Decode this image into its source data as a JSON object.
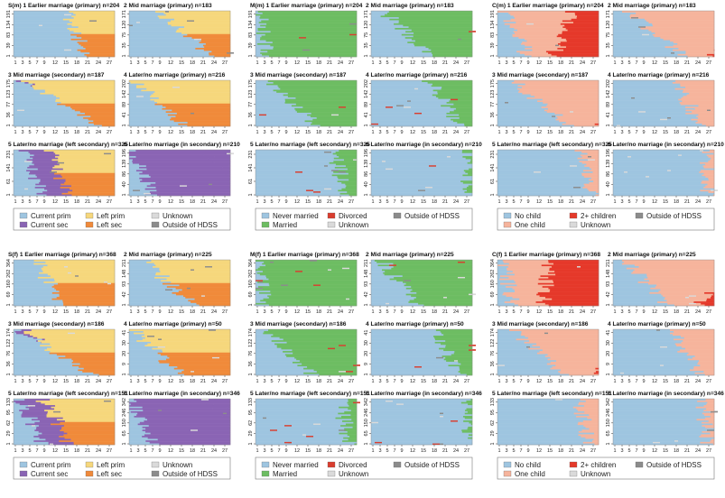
{
  "chart_data": {
    "type": "heatmap",
    "description_kind": "sequence index plots",
    "x_ticks": [
      1,
      3,
      5,
      7,
      9,
      12,
      15,
      18,
      21,
      24,
      27
    ],
    "colors": {
      "S": {
        "prim": "#9ec5e0",
        "sec": "#8a64b4",
        "leftprim": "#f6d77c",
        "leftsec": "#f08a3a",
        "unknown": "#dadada",
        "outside": "#8c8c8c"
      },
      "M": {
        "never": "#9ec5e0",
        "married": "#6dbd62",
        "divorced": "#d93d2e",
        "unknown": "#dadada",
        "outside": "#8c8c8c"
      },
      "C": {
        "nochild": "#9ec5e0",
        "one": "#f6b49c",
        "two": "#e5392a",
        "unknown": "#dadada",
        "outside": "#8c8c8c"
      }
    },
    "blocks": [
      {
        "id": "S(m)",
        "kind": "S",
        "panels": [
          {
            "title": "S(m)  1 Earlier marriage (primary) n=204",
            "yticks": [
              "1",
              "39",
              "83",
              "134",
              "191"
            ],
            "p": [
              0.55,
              0.7,
              0.1,
              0.18
            ]
          },
          {
            "title": "2 Mid marriage (primary) n=183",
            "yticks": [
              "1",
              "35",
              "75",
              "120",
              "171"
            ],
            "p": [
              0.3,
              0.82,
              0.08,
              0.15
            ]
          },
          {
            "title": "3 Mid marriage (secondary) n=187",
            "yticks": [
              "1",
              "36",
              "77",
              "123",
              "175"
            ],
            "p": [
              0.1,
              0.85,
              0.15,
              0.55
            ]
          },
          {
            "title": "4 Later/no marriage (primary) n=216",
            "yticks": [
              "1",
              "41",
              "89",
              "142",
              "202"
            ],
            "p": [
              0.05,
              0.55,
              0.05,
              0.12
            ]
          },
          {
            "title": "5 Later/no marriage (left secondary) n=325",
            "yticks": [
              "1",
              "61",
              "141",
              "231"
            ],
            "p": [
              0.1,
              0.3,
              0.35,
              0.55
            ]
          },
          {
            "title": "6 Later/no marriage (in secondary) n=210",
            "yticks": [
              "1",
              "40",
              "86",
              "139",
              "196"
            ],
            "p": [
              0.0,
              0.25,
              0.75,
              1.2
            ]
          }
        ],
        "legend": [
          {
            "label": "Current prim",
            "color": "#9ec5e0"
          },
          {
            "label": "Left prim",
            "color": "#f6d77c"
          },
          {
            "label": "Unknown",
            "color": "#dadada"
          },
          {
            "label": "Current sec",
            "color": "#8a64b4"
          },
          {
            "label": "Left sec",
            "color": "#f08a3a"
          },
          {
            "label": "Outside of HDSS",
            "color": "#8c8c8c"
          }
        ]
      },
      {
        "id": "M(m)",
        "kind": "M",
        "panels": [
          {
            "title": "M(m)  1 Earlier marriage (primary) n=204",
            "yticks": [
              "1",
              "39",
              "83",
              "134",
              "191"
            ],
            "p": [
              0.1,
              0.05
            ]
          },
          {
            "title": "2 Mid marriage (primary) n=183",
            "yticks": [
              "1",
              "35",
              "75",
              "120",
              "171"
            ],
            "p": [
              0.55,
              0.12
            ]
          },
          {
            "title": "3 Mid marriage (secondary) n=187",
            "yticks": [
              "1",
              "36",
              "77",
              "123",
              "175"
            ],
            "p": [
              0.58,
              0.12
            ]
          },
          {
            "title": "4 Later/no marriage (primary) n=216",
            "yticks": [
              "1",
              "41",
              "89",
              "142",
              "202"
            ],
            "p": [
              0.85,
              0.55
            ]
          },
          {
            "title": "5 Later/no marriage (left secondary) n=325",
            "yticks": [
              "1",
              "61",
              "141",
              "231"
            ],
            "p": [
              0.85,
              0.75
            ]
          },
          {
            "title": "6 Later/no marriage (in secondary) n=210",
            "yticks": [
              "1",
              "40",
              "86",
              "139",
              "196"
            ],
            "p": [
              0.93,
              0.92
            ]
          }
        ],
        "legend": [
          {
            "label": "Never married",
            "color": "#9ec5e0"
          },
          {
            "label": "Divorced",
            "color": "#d93d2e"
          },
          {
            "label": "Outside of HDSS",
            "color": "#8c8c8c"
          },
          {
            "label": "Married",
            "color": "#6dbd62"
          },
          {
            "label": "Unknown",
            "color": "#dadada"
          }
        ]
      },
      {
        "id": "C(m)",
        "kind": "C",
        "panels": [
          {
            "title": "C(m)  1 Earlier marriage (primary) n=204",
            "yticks": [
              "1",
              "39",
              "83",
              "134",
              "191"
            ],
            "p": [
              0.3,
              0.08,
              0.55
            ]
          },
          {
            "title": "2 Mid marriage (primary) n=183",
            "yticks": [
              "1",
              "35",
              "75",
              "120",
              "171"
            ],
            "p": [
              0.7,
              0.15,
              0.95
            ]
          },
          {
            "title": "3 Mid marriage (secondary) n=187",
            "yticks": [
              "1",
              "36",
              "77",
              "123",
              "175"
            ],
            "p": [
              0.72,
              0.15,
              1.0
            ]
          },
          {
            "title": "4 Later/no marriage (primary) n=216",
            "yticks": [
              "1",
              "41",
              "89",
              "142",
              "202"
            ],
            "p": [
              0.88,
              0.6,
              1.2
            ]
          },
          {
            "title": "5 Later/no marriage (left secondary) n=325",
            "yticks": [
              "1",
              "61",
              "141",
              "231"
            ],
            "p": [
              0.93,
              0.8,
              1.3
            ]
          },
          {
            "title": "6 Later/no marriage (in secondary) n=210",
            "yticks": [
              "1",
              "40",
              "86",
              "139",
              "196"
            ],
            "p": [
              0.95,
              0.92,
              1.4
            ]
          }
        ],
        "legend": [
          {
            "label": "No child",
            "color": "#9ec5e0"
          },
          {
            "label": "2+ children",
            "color": "#e5392a"
          },
          {
            "label": "Outside of HDSS",
            "color": "#8c8c8c"
          },
          {
            "label": "One child",
            "color": "#f6b49c"
          },
          {
            "label": "Unknown",
            "color": "#dadada"
          }
        ]
      },
      {
        "id": "S(f)",
        "kind": "S",
        "panels": [
          {
            "title": "S(f)  1 Earlier marriage (primary) n=368",
            "yticks": [
              "1",
              "69",
              "160",
              "262",
              "364"
            ],
            "p": [
              0.25,
              0.45,
              0.03,
              0.1
            ]
          },
          {
            "title": "2 Mid marriage (primary) n=225",
            "yticks": [
              "1",
              "42",
              "93",
              "148",
              "211"
            ],
            "p": [
              0.15,
              0.65,
              0.05,
              0.12
            ]
          },
          {
            "title": "3 Mid marriage (secondary) n=186",
            "yticks": [
              "1",
              "36",
              "76",
              "122",
              "174"
            ],
            "p": [
              0.05,
              0.8,
              0.15,
              0.55
            ]
          },
          {
            "title": "4 Later/no marriage (primary) n=50",
            "yticks": [
              "1",
              "9",
              "20",
              "30",
              "41"
            ],
            "p": [
              0.05,
              0.5,
              0.05,
              0.12
            ]
          },
          {
            "title": "5 Later/no marriage (left secondary) n=151",
            "yticks": [
              "1",
              "29",
              "62",
              "95",
              "133"
            ],
            "p": [
              0.05,
              0.3,
              0.3,
              0.55
            ]
          },
          {
            "title": "6 Later/no marriage (in secondary) n=346",
            "yticks": [
              "1",
              "65",
              "150",
              "246",
              "342"
            ],
            "p": [
              0.0,
              0.25,
              0.8,
              1.25
            ]
          }
        ],
        "legend": [
          {
            "label": "Current prim",
            "color": "#9ec5e0"
          },
          {
            "label": "Left prim",
            "color": "#f6d77c"
          },
          {
            "label": "Unknown",
            "color": "#dadada"
          },
          {
            "label": "Current sec",
            "color": "#8a64b4"
          },
          {
            "label": "Left sec",
            "color": "#f08a3a"
          },
          {
            "label": "Outside of HDSS",
            "color": "#8c8c8c"
          }
        ]
      },
      {
        "id": "M(f)",
        "kind": "M",
        "panels": [
          {
            "title": "M(f)  1 Earlier marriage (primary) n=368",
            "yticks": [
              "1",
              "69",
              "160",
              "262",
              "364"
            ],
            "p": [
              0.08,
              0.03
            ]
          },
          {
            "title": "2 Mid marriage (primary) n=225",
            "yticks": [
              "1",
              "42",
              "93",
              "148",
              "211"
            ],
            "p": [
              0.45,
              0.1
            ]
          },
          {
            "title": "3 Mid marriage (secondary) n=186",
            "yticks": [
              "1",
              "36",
              "76",
              "122",
              "174"
            ],
            "p": [
              0.55,
              0.12
            ]
          },
          {
            "title": "4 Later/no marriage (primary) n=50",
            "yticks": [
              "1",
              "9",
              "20",
              "30",
              "41"
            ],
            "p": [
              0.85,
              0.6
            ]
          },
          {
            "title": "5 Later/no marriage (left secondary) n=151",
            "yticks": [
              "1",
              "29",
              "62",
              "95",
              "133"
            ],
            "p": [
              0.88,
              0.8
            ]
          },
          {
            "title": "6 Later/no marriage (in secondary) n=346",
            "yticks": [
              "1",
              "65",
              "150",
              "246",
              "342"
            ],
            "p": [
              0.93,
              0.92
            ]
          }
        ],
        "legend": [
          {
            "label": "Never married",
            "color": "#9ec5e0"
          },
          {
            "label": "Divorced",
            "color": "#d93d2e"
          },
          {
            "label": "Outside of HDSS",
            "color": "#8c8c8c"
          },
          {
            "label": "Married",
            "color": "#6dbd62"
          },
          {
            "label": "Unknown",
            "color": "#dadada"
          }
        ]
      },
      {
        "id": "C(f)",
        "kind": "C",
        "panels": [
          {
            "title": "C(f)  1 Earlier marriage (primary) n=368",
            "yticks": [
              "1",
              "69",
              "160",
              "262",
              "364"
            ],
            "p": [
              0.15,
              0.05,
              0.45
            ]
          },
          {
            "title": "2 Mid marriage (primary) n=225",
            "yticks": [
              "1",
              "42",
              "93",
              "148",
              "211"
            ],
            "p": [
              0.55,
              0.12,
              0.85
            ]
          },
          {
            "title": "3 Mid marriage (secondary) n=186",
            "yticks": [
              "1",
              "36",
              "76",
              "122",
              "174"
            ],
            "p": [
              0.65,
              0.15,
              0.95
            ]
          },
          {
            "title": "4 Later/no marriage (primary) n=50",
            "yticks": [
              "1",
              "9",
              "20",
              "30",
              "41"
            ],
            "p": [
              0.85,
              0.6,
              1.2
            ]
          },
          {
            "title": "5 Later/no marriage (left secondary) n=151",
            "yticks": [
              "1",
              "29",
              "62",
              "95",
              "133"
            ],
            "p": [
              0.9,
              0.8,
              1.3
            ]
          },
          {
            "title": "6 Later/no marriage (in secondary) n=346",
            "yticks": [
              "1",
              "65",
              "150",
              "246",
              "342"
            ],
            "p": [
              0.93,
              0.9,
              1.4
            ]
          }
        ],
        "legend": [
          {
            "label": "No child",
            "color": "#9ec5e0"
          },
          {
            "label": "2+ children",
            "color": "#e5392a"
          },
          {
            "label": "Outside of HDSS",
            "color": "#8c8c8c"
          },
          {
            "label": "One child",
            "color": "#f6b49c"
          },
          {
            "label": "Unknown",
            "color": "#dadada"
          }
        ]
      }
    ]
  }
}
